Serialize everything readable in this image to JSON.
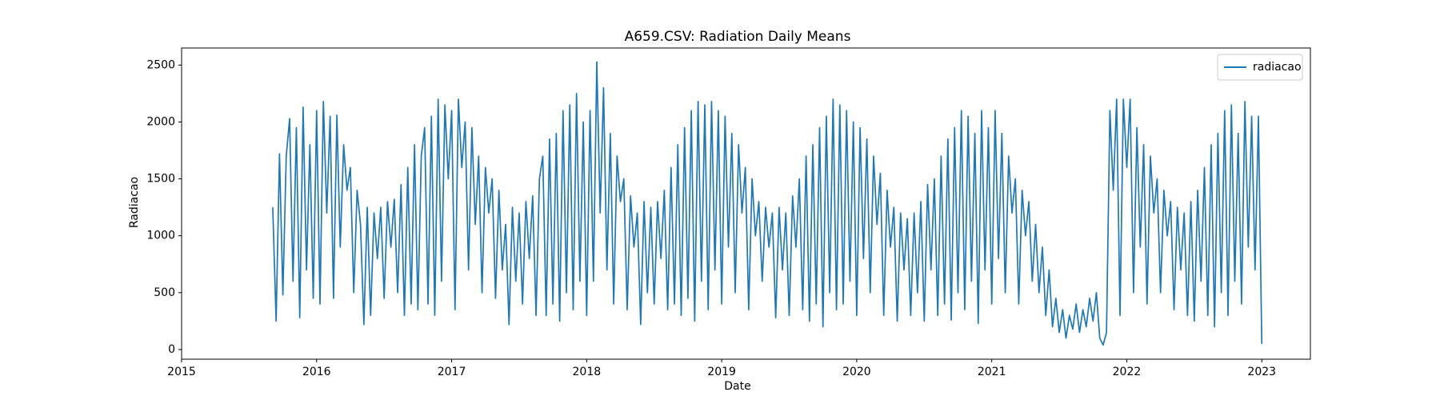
{
  "chart_data": {
    "type": "line",
    "title": "A659.CSV: Radiation Daily Means",
    "x_label": "Date",
    "y_label": "Radiacao",
    "xlim": [
      2015,
      2023.36
    ],
    "xticks": [
      2015,
      2016,
      2017,
      2018,
      2019,
      2020,
      2021,
      2022,
      2023
    ],
    "ylim": [
      -85,
      2650
    ],
    "yticks": [
      0,
      500,
      1000,
      1500,
      2000,
      2500
    ],
    "grid": false,
    "legend": "upper right",
    "x": [
      2015.675,
      2015.7,
      2015.725,
      2015.75,
      2015.775,
      2015.8,
      2015.825,
      2015.85,
      2015.875,
      2015.9,
      2015.925,
      2015.95,
      2015.975,
      2016.0,
      2016.025,
      2016.05,
      2016.075,
      2016.1,
      2016.125,
      2016.15,
      2016.175,
      2016.2,
      2016.225,
      2016.25,
      2016.275,
      2016.3,
      2016.325,
      2016.35,
      2016.375,
      2016.4,
      2016.425,
      2016.45,
      2016.475,
      2016.5,
      2016.525,
      2016.55,
      2016.575,
      2016.6,
      2016.625,
      2016.65,
      2016.675,
      2016.7,
      2016.725,
      2016.75,
      2016.775,
      2016.8,
      2016.825,
      2016.85,
      2016.875,
      2016.9,
      2016.925,
      2016.95,
      2016.975,
      2017.0,
      2017.025,
      2017.05,
      2017.075,
      2017.1,
      2017.125,
      2017.15,
      2017.175,
      2017.2,
      2017.225,
      2017.25,
      2017.275,
      2017.3,
      2017.325,
      2017.35,
      2017.375,
      2017.4,
      2017.425,
      2017.45,
      2017.475,
      2017.5,
      2017.525,
      2017.55,
      2017.575,
      2017.6,
      2017.625,
      2017.65,
      2017.675,
      2017.7,
      2017.725,
      2017.75,
      2017.775,
      2017.8,
      2017.825,
      2017.85,
      2017.875,
      2017.9,
      2017.925,
      2017.95,
      2017.975,
      2018.0,
      2018.025,
      2018.05,
      2018.075,
      2018.1,
      2018.125,
      2018.15,
      2018.175,
      2018.2,
      2018.225,
      2018.25,
      2018.275,
      2018.3,
      2018.325,
      2018.35,
      2018.375,
      2018.4,
      2018.425,
      2018.45,
      2018.475,
      2018.5,
      2018.525,
      2018.55,
      2018.575,
      2018.6,
      2018.625,
      2018.65,
      2018.675,
      2018.7,
      2018.725,
      2018.75,
      2018.775,
      2018.8,
      2018.825,
      2018.85,
      2018.875,
      2018.9,
      2018.925,
      2018.95,
      2018.975,
      2019.0,
      2019.025,
      2019.05,
      2019.075,
      2019.1,
      2019.125,
      2019.15,
      2019.175,
      2019.2,
      2019.225,
      2019.25,
      2019.275,
      2019.3,
      2019.325,
      2019.35,
      2019.375,
      2019.4,
      2019.425,
      2019.45,
      2019.475,
      2019.5,
      2019.525,
      2019.55,
      2019.575,
      2019.6,
      2019.625,
      2019.65,
      2019.675,
      2019.7,
      2019.725,
      2019.75,
      2019.775,
      2019.8,
      2019.825,
      2019.85,
      2019.875,
      2019.9,
      2019.925,
      2019.95,
      2019.975,
      2020.0,
      2020.025,
      2020.05,
      2020.075,
      2020.1,
      2020.125,
      2020.15,
      2020.175,
      2020.2,
      2020.225,
      2020.25,
      2020.275,
      2020.3,
      2020.325,
      2020.35,
      2020.375,
      2020.4,
      2020.425,
      2020.45,
      2020.475,
      2020.5,
      2020.525,
      2020.55,
      2020.575,
      2020.6,
      2020.625,
      2020.65,
      2020.675,
      2020.7,
      2020.725,
      2020.75,
      2020.775,
      2020.8,
      2020.825,
      2020.85,
      2020.875,
      2020.9,
      2020.925,
      2020.95,
      2020.975,
      2021.0,
      2021.025,
      2021.05,
      2021.075,
      2021.1,
      2021.125,
      2021.15,
      2021.175,
      2021.2,
      2021.225,
      2021.25,
      2021.275,
      2021.3,
      2021.325,
      2021.35,
      2021.375,
      2021.4,
      2021.425,
      2021.45,
      2021.475,
      2021.5,
      2021.525,
      2021.55,
      2021.575,
      2021.6,
      2021.625,
      2021.65,
      2021.675,
      2021.7,
      2021.725,
      2021.75,
      2021.775,
      2021.8,
      2021.825,
      2021.85,
      2021.875,
      2021.9,
      2021.925,
      2021.95,
      2021.975,
      2022.0,
      2022.025,
      2022.05,
      2022.075,
      2022.1,
      2022.125,
      2022.15,
      2022.175,
      2022.2,
      2022.225,
      2022.25,
      2022.275,
      2022.3,
      2022.325,
      2022.35,
      2022.375,
      2022.4,
      2022.425,
      2022.45,
      2022.475,
      2022.5,
      2022.525,
      2022.55,
      2022.575,
      2022.6,
      2022.625,
      2022.65,
      2022.675,
      2022.7,
      2022.725,
      2022.75,
      2022.775,
      2022.8,
      2022.825,
      2022.85,
      2022.875,
      2022.9,
      2022.925,
      2022.95,
      2022.975,
      2023.0
    ],
    "series": [
      {
        "name": "radiacao",
        "color": "#1f77b4",
        "values": [
          1250,
          250,
          1720,
          480,
          1700,
          2030,
          600,
          1950,
          280,
          2130,
          700,
          1800,
          450,
          2100,
          400,
          2180,
          1200,
          2050,
          450,
          2060,
          900,
          1800,
          1400,
          1600,
          500,
          1400,
          1100,
          220,
          1250,
          300,
          1200,
          800,
          1250,
          450,
          1300,
          900,
          1320,
          500,
          1450,
          300,
          1600,
          400,
          1800,
          350,
          1700,
          1950,
          400,
          2050,
          300,
          2200,
          600,
          2150,
          1500,
          2100,
          350,
          2200,
          1600,
          2000,
          700,
          1950,
          1100,
          1700,
          500,
          1600,
          1200,
          1500,
          450,
          1400,
          700,
          1100,
          220,
          1250,
          600,
          1200,
          400,
          1300,
          800,
          1350,
          300,
          1500,
          1700,
          300,
          1850,
          400,
          1900,
          250,
          2100,
          500,
          2150,
          350,
          2250,
          600,
          2000,
          300,
          2100,
          600,
          2527,
          1200,
          2300,
          700,
          1900,
          400,
          1700,
          1300,
          1500,
          350,
          1350,
          900,
          1200,
          220,
          1300,
          500,
          1250,
          400,
          1300,
          800,
          1400,
          350,
          1600,
          400,
          1800,
          300,
          1950,
          450,
          2100,
          250,
          2180,
          600,
          2150,
          350,
          2180,
          700,
          2100,
          400,
          2050,
          900,
          1900,
          500,
          1800,
          1200,
          1600,
          350,
          1500,
          1000,
          1300,
          600,
          1250,
          900,
          1200,
          280,
          1250,
          700,
          1200,
          300,
          1350,
          900,
          1500,
          350,
          1700,
          250,
          1800,
          400,
          1950,
          200,
          2050,
          500,
          2200,
          350,
          2150,
          400,
          2100,
          600,
          2000,
          300,
          1950,
          800,
          1850,
          500,
          1700,
          1100,
          1550,
          300,
          1400,
          900,
          1250,
          250,
          1200,
          700,
          1150,
          300,
          1200,
          500,
          1300,
          250,
          1450,
          700,
          1500,
          300,
          1700,
          400,
          1850,
          260,
          1950,
          500,
          2100,
          350,
          2050,
          600,
          1900,
          230,
          2100,
          700,
          1950,
          400,
          2100,
          800,
          1900,
          500,
          1700,
          1200,
          1500,
          400,
          1400,
          1000,
          1300,
          600,
          1100,
          500,
          900,
          300,
          700,
          200,
          450,
          150,
          350,
          100,
          300,
          180,
          400,
          150,
          350,
          200,
          450,
          250,
          500,
          100,
          40,
          150,
          2100,
          1400,
          2200,
          300,
          2200,
          1600,
          2200,
          500,
          1950,
          900,
          1800,
          400,
          1700,
          1200,
          1500,
          500,
          1400,
          1000,
          1300,
          350,
          1250,
          700,
          1200,
          300,
          1300,
          250,
          1400,
          600,
          1600,
          300,
          1800,
          200,
          1900,
          500,
          2100,
          300,
          2150,
          600,
          1900,
          400,
          2180,
          900,
          2050,
          700,
          2050,
          50
        ]
      }
    ]
  }
}
